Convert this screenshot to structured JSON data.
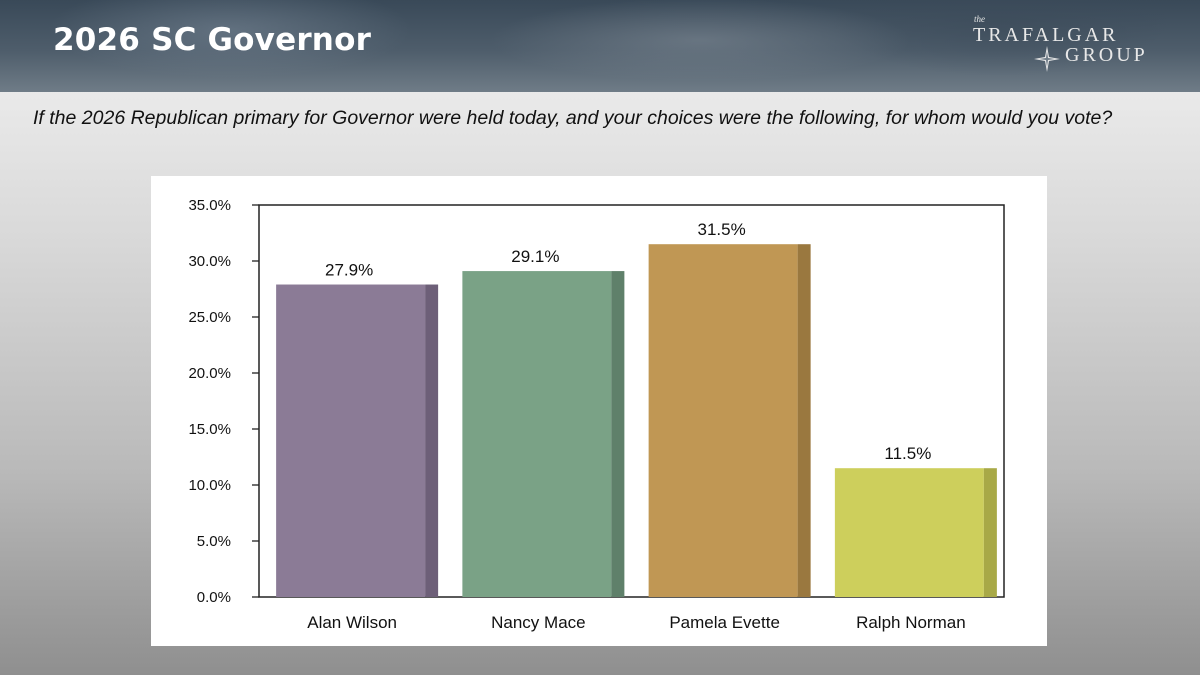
{
  "slide": {
    "title": "2026 SC Governor",
    "logo": {
      "the": "the",
      "line1": "TRAFALGAR",
      "line2": "GROUP"
    },
    "question": "If the 2026 Republican primary for Governor were held today, and your choices were the following, for whom would you vote?"
  },
  "chart_data": {
    "type": "bar",
    "categories": [
      "Alan Wilson",
      "Nancy Mace",
      "Pamela Evette",
      "Ralph Norman"
    ],
    "values": [
      27.9,
      29.1,
      31.5,
      11.5
    ],
    "value_labels": [
      "27.9%",
      "29.1%",
      "31.5%",
      "11.5%"
    ],
    "colors": [
      "#8b7b96",
      "#7aa286",
      "#c09754",
      "#cdcf5c"
    ],
    "shade_colors": [
      "#6d5f78",
      "#5f806a",
      "#9a783f",
      "#a8a947"
    ],
    "title": "",
    "xlabel": "",
    "ylabel": "",
    "ylim": [
      0,
      35
    ],
    "yticks": [
      0,
      5,
      10,
      15,
      20,
      25,
      30,
      35
    ],
    "ytick_labels": [
      "0.0%",
      "5.0%",
      "10.0%",
      "15.0%",
      "20.0%",
      "25.0%",
      "30.0%",
      "35.0%"
    ],
    "grid": false,
    "legend": "none"
  }
}
